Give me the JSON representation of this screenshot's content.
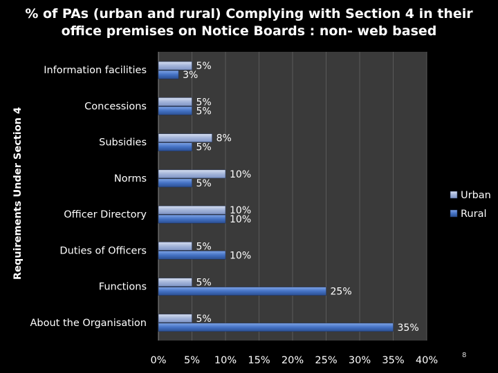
{
  "title_lines": [
    "% of PAs (urban and rural) Complying with Section 4 in their",
    "office premises on Notice Boards : non- web based"
  ],
  "page_number": "8",
  "chart_data": {
    "type": "bar",
    "orientation": "horizontal",
    "title": "% of PAs (urban and rural) Complying with Section 4 in their office premises on Notice Boards : non- web based",
    "ylabel": "Requirements Under Section 4",
    "xlabel": "",
    "categories": [
      "Information facilities",
      "Concessions",
      "Subsidies",
      "Norms",
      "Officer Directory",
      "Duties of Officers",
      "Functions",
      "About the Organisation"
    ],
    "series": [
      {
        "name": "Urban",
        "values": [
          5,
          5,
          8,
          10,
          10,
          5,
          5,
          5
        ],
        "color": "#a3b4d9",
        "labels": [
          "5%",
          "5%",
          "8%",
          "10%",
          "10%",
          "5%",
          "5%",
          "5%"
        ]
      },
      {
        "name": "Rural",
        "values": [
          3,
          5,
          5,
          5,
          10,
          10,
          25,
          35
        ],
        "color": "#4472c4",
        "labels": [
          "3%",
          "5%",
          "5%",
          "5%",
          "10%",
          "10%",
          "25%",
          "35%"
        ]
      }
    ],
    "xlim": [
      0,
      40
    ],
    "xticks": [
      0,
      5,
      10,
      15,
      20,
      25,
      30,
      35,
      40
    ],
    "xtick_labels": [
      "0%",
      "5%",
      "10%",
      "15%",
      "20%",
      "25%",
      "30%",
      "35%",
      "40%"
    ],
    "grid": true,
    "legend_position": "right",
    "colors": {
      "background": "#000000",
      "plot_background": "#3a3a3a",
      "gridline": "#5a5a5a"
    }
  }
}
